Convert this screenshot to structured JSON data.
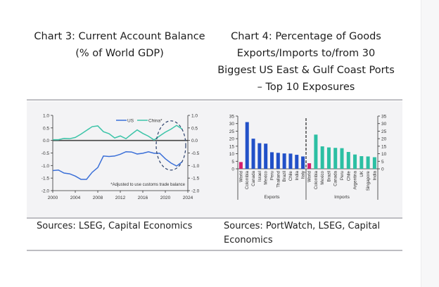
{
  "chart3": {
    "title_lines": [
      "Chart 3: Current Account Balance",
      "(% of World GDP)"
    ],
    "sources": "Sources: LSEG, Capital Economics"
  },
  "chart4": {
    "title_lines": [
      "Chart 4: Percentage of Goods",
      "Exports/Imports to/from 30",
      "Biggest US East & Gulf Coast Ports",
      "– Top 10 Exposures"
    ],
    "sources": "Sources: PortWatch, LSEG, Capital Economics"
  },
  "chart_data": [
    {
      "type": "line",
      "title": "Current Account Balance (% of World GDP)",
      "x": [
        2000,
        2001,
        2002,
        2003,
        2004,
        2005,
        2006,
        2007,
        2008,
        2009,
        2010,
        2011,
        2012,
        2013,
        2014,
        2015,
        2016,
        2017,
        2018,
        2019,
        2020,
        2021,
        2022,
        2023
      ],
      "series": [
        {
          "name": "US",
          "color": "#3a6fd8",
          "values": [
            -1.2,
            -1.18,
            -1.3,
            -1.33,
            -1.42,
            -1.55,
            -1.55,
            -1.27,
            -1.08,
            -0.62,
            -0.64,
            -0.62,
            -0.55,
            -0.45,
            -0.46,
            -0.54,
            -0.51,
            -0.45,
            -0.51,
            -0.51,
            -0.73,
            -0.9,
            -1.02,
            -0.85
          ]
        },
        {
          "name": "China*",
          "color": "#3cc4a8",
          "values": [
            0.03,
            0.03,
            0.08,
            0.07,
            0.12,
            0.25,
            0.4,
            0.55,
            0.58,
            0.35,
            0.27,
            0.1,
            0.18,
            0.07,
            0.25,
            0.42,
            0.28,
            0.17,
            0.02,
            0.18,
            0.33,
            0.45,
            0.6,
            0.45
          ]
        }
      ],
      "xticks": [
        "2000",
        "2004",
        "2008",
        "2012",
        "2016",
        "2020",
        "2024"
      ],
      "yticks": [
        "1.0",
        "0.5",
        "0.0",
        "-0.5",
        "-1.0",
        "-1.5",
        "-2.0"
      ],
      "xlim": [
        2000,
        2024
      ],
      "ylim": [
        -2.0,
        1.0
      ],
      "legend": "top-center",
      "annotation": "*Adjusted to use customs trade balance"
    },
    {
      "type": "bar",
      "title": "Percentage of Goods Exports/Imports to/from 30 Biggest US East & Gulf Coast Ports – Top 10 Exposures",
      "groups": [
        {
          "name": "Exports",
          "color": "#2150c8",
          "categories": [
            "World",
            "Colombia",
            "Canada",
            "Israel",
            "Mexico",
            "Peru",
            "Thailand",
            "Brazil",
            "Chile",
            "India",
            "Italy"
          ],
          "values": [
            4.5,
            31,
            20,
            17,
            16.7,
            11,
            10.6,
            10.2,
            10.1,
            9.3,
            8.2
          ]
        },
        {
          "name": "Imports",
          "color": "#2cbfa3",
          "categories": [
            "World",
            "Colombia",
            "Mexico",
            "Brazil",
            "Canada",
            "Peru",
            "Chile",
            "Argentina",
            "UK",
            "Singapore",
            "India"
          ],
          "values": [
            3.7,
            22.7,
            14.9,
            14.2,
            13.9,
            13.7,
            11.2,
            9.5,
            8.4,
            8.2,
            7.7
          ]
        }
      ],
      "highlight_color": "#d41e6e",
      "yticks": [
        "35",
        "30",
        "25",
        "20",
        "15",
        "10",
        "5",
        "0"
      ],
      "ylim": [
        0,
        35
      ]
    }
  ]
}
